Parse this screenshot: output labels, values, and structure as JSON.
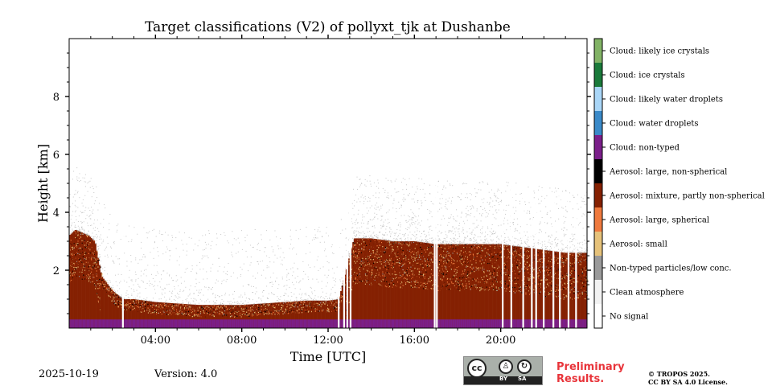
{
  "chart_data": {
    "type": "heatmap",
    "title": "Target classifications (V2) of pollyxt_tjk at Dushanbe",
    "xlabel": "Time [UTC]",
    "ylabel": "Height [km]",
    "xlim": [
      0,
      24
    ],
    "ylim": [
      0,
      10
    ],
    "x_ticks": [
      "04:00",
      "08:00",
      "12:00",
      "16:00",
      "20:00"
    ],
    "x_tick_values": [
      4,
      8,
      12,
      16,
      20
    ],
    "y_ticks": [
      "2",
      "4",
      "6",
      "8"
    ],
    "y_tick_values": [
      2,
      4,
      6,
      8
    ],
    "colorbar": [
      {
        "label": "Cloud: likely ice crystals",
        "color": "#82b366"
      },
      {
        "label": "Cloud: ice crystals",
        "color": "#1a7a3a"
      },
      {
        "label": "Cloud: likely water droplets",
        "color": "#a9d6f7"
      },
      {
        "label": "Cloud: water droplets",
        "color": "#3a8ac9"
      },
      {
        "label": "Cloud: non-typed",
        "color": "#7b1f8a"
      },
      {
        "label": "Aerosol: large, non-spherical",
        "color": "#000000"
      },
      {
        "label": "Aerosol: mixture, partly non-spherical",
        "color": "#852102"
      },
      {
        "label": "Aerosol: large, spherical",
        "color": "#ef7a3e"
      },
      {
        "label": "Aerosol: small",
        "color": "#e6c27a"
      },
      {
        "label": "Non-typed particles/low conc.",
        "color": "#9a9a9a"
      },
      {
        "label": "Clean atmosphere",
        "color": "#f2f2f2"
      },
      {
        "label": "No signal",
        "color": "#ffffff"
      }
    ],
    "aerosol_top_km": [
      [
        0.0,
        3.2
      ],
      [
        0.3,
        3.4
      ],
      [
        0.6,
        3.3
      ],
      [
        0.9,
        3.2
      ],
      [
        1.2,
        3.0
      ],
      [
        1.5,
        1.8
      ],
      [
        2.0,
        1.3
      ],
      [
        2.5,
        1.0
      ],
      [
        3.0,
        1.0
      ],
      [
        4.0,
        0.9
      ],
      [
        5.0,
        0.85
      ],
      [
        6.0,
        0.8
      ],
      [
        7.0,
        0.8
      ],
      [
        8.0,
        0.8
      ],
      [
        9.0,
        0.85
      ],
      [
        10.0,
        0.9
      ],
      [
        11.0,
        0.95
      ],
      [
        12.0,
        0.95
      ],
      [
        12.5,
        1.0
      ],
      [
        12.9,
        2.2
      ],
      [
        13.2,
        3.1
      ],
      [
        14.0,
        3.1
      ],
      [
        15.0,
        3.0
      ],
      [
        16.0,
        3.0
      ],
      [
        17.0,
        2.9
      ],
      [
        18.0,
        2.9
      ],
      [
        19.0,
        2.9
      ],
      [
        20.0,
        2.9
      ],
      [
        21.0,
        2.8
      ],
      [
        22.0,
        2.7
      ],
      [
        23.0,
        2.6
      ],
      [
        24.0,
        2.6
      ]
    ],
    "no_signal_gaps_utc": [
      2.45,
      12.45,
      12.7,
      12.85,
      13.0,
      16.9,
      17.0,
      20.05,
      20.45,
      21.0,
      21.4,
      21.6,
      21.95,
      22.4,
      22.7,
      23.1,
      23.45
    ]
  },
  "footer": {
    "date": "2025-10-19",
    "version": "Version: 4.0",
    "preliminary": "Preliminary Results.",
    "license_line1": "© TROPOS 2025.",
    "license_line2": "CC BY SA 4.0 License.",
    "cc_badge": {
      "cc": "cc",
      "by": "BY",
      "sa": "SA"
    }
  }
}
